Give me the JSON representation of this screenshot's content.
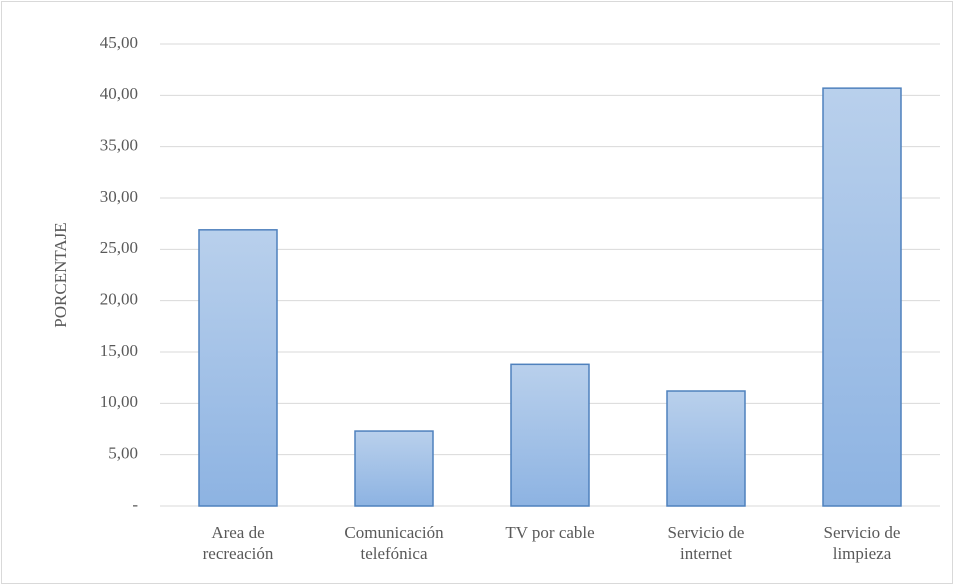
{
  "chart_data": {
    "type": "bar",
    "y_label": "PORCENTAJE",
    "categories": [
      "Area de\nrecreación",
      "Comunicación\ntelefónica",
      "TV por cable",
      "Servicio de\ninternet",
      "Servicio de\nlimpieza"
    ],
    "values": [
      26.9,
      7.3,
      13.8,
      11.2,
      40.7
    ],
    "color": "#8db3e2",
    "ylim": [
      0,
      45
    ],
    "yticks": [
      {
        "value": 0,
        "label": "-"
      },
      {
        "value": 5,
        "label": "5,00"
      },
      {
        "value": 10,
        "label": "10,00"
      },
      {
        "value": 15,
        "label": "15,00"
      },
      {
        "value": 20,
        "label": "20,00"
      },
      {
        "value": 25,
        "label": "25,00"
      },
      {
        "value": 30,
        "label": "30,00"
      },
      {
        "value": 35,
        "label": "35,00"
      },
      {
        "value": 40,
        "label": "40,00"
      },
      {
        "value": 45,
        "label": "45,00"
      }
    ],
    "grid": true
  }
}
